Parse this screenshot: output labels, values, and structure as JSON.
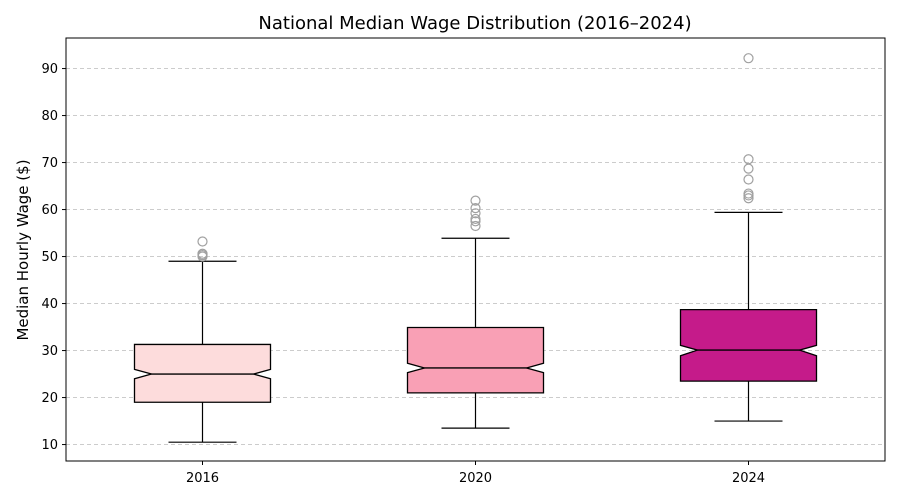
{
  "chart_data": {
    "type": "box",
    "title": "National Median Wage Distribution (2016–2024)",
    "xlabel": "",
    "ylabel": "Median Hourly Wage ($)",
    "ylim": [
      6.5,
      96.5
    ],
    "yticks": [
      10,
      20,
      30,
      40,
      50,
      60,
      70,
      80,
      90
    ],
    "grid": "y-dashed",
    "notched": true,
    "categories": [
      "2016",
      "2020",
      "2024"
    ],
    "boxes": [
      {
        "category": "2016",
        "whisker_low": 10.5,
        "q1": 19.0,
        "median": 25.0,
        "q3": 31.3,
        "whisker_high": 49.0,
        "notch_low": 24.0,
        "notch_high": 26.0,
        "outliers": [
          50.0,
          50.3,
          50.6,
          53.2
        ],
        "color": "#fddcdc"
      },
      {
        "category": "2020",
        "whisker_low": 13.5,
        "q1": 21.0,
        "median": 26.3,
        "q3": 34.9,
        "whisker_high": 53.9,
        "notch_low": 25.3,
        "notch_high": 27.3,
        "outliers": [
          56.5,
          57.5,
          58.0,
          59.2,
          60.3,
          61.9
        ],
        "color": "#f9a0b5"
      },
      {
        "category": "2024",
        "whisker_low": 15.0,
        "q1": 23.5,
        "median": 30.1,
        "q3": 38.7,
        "whisker_high": 59.4,
        "notch_low": 28.9,
        "notch_high": 31.1,
        "outliers": [
          62.4,
          63.0,
          63.4,
          66.4,
          68.7,
          70.7,
          92.2
        ],
        "color": "#c51b8a"
      }
    ]
  }
}
